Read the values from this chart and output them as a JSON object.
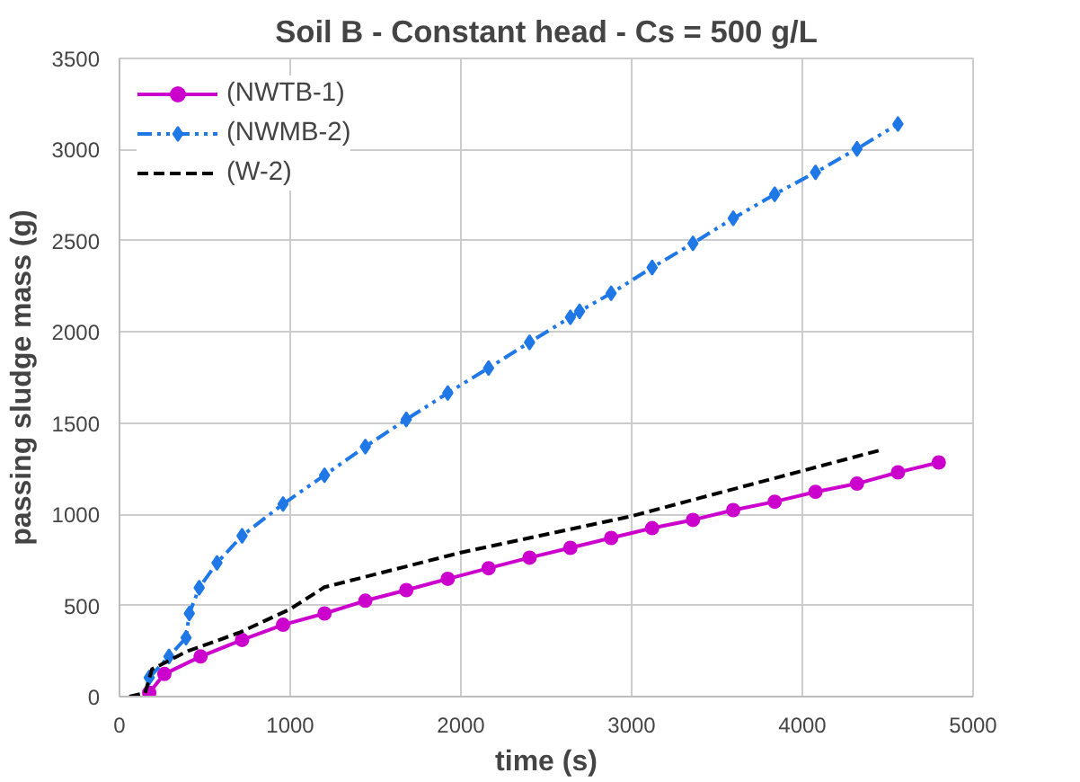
{
  "chart_data": {
    "type": "line",
    "title": "Soil B - Constant head - Cs = 500 g/L",
    "xlabel": "time (s)",
    "ylabel": "passing sludge mass (g)",
    "xlim": [
      0,
      5000
    ],
    "xticks": [
      0,
      1000,
      2000,
      3000,
      4000,
      5000
    ],
    "ylim": [
      0,
      3500
    ],
    "yticks": [
      0,
      500,
      1000,
      1500,
      2000,
      2500,
      3000,
      3500
    ],
    "grid": true,
    "legend": "top left",
    "series": [
      {
        "name": "(NWTB-1)",
        "color": "#cc00cc",
        "marker": "circle",
        "line_style": "solid",
        "x": [
          174,
          263,
          475,
          718,
          958,
          1201,
          1440,
          1680,
          1923,
          2162,
          2402,
          2641,
          2880,
          3120,
          3359,
          3595,
          3838,
          4077,
          4320,
          4560,
          4799
        ],
        "values": [
          21,
          124,
          220,
          311,
          394,
          456,
          526,
          584,
          646,
          704,
          762,
          816,
          870,
          924,
          969,
          1023,
          1069,
          1123,
          1168,
          1230,
          1284
        ]
      },
      {
        "name": "(NWMB-2)",
        "color": "#1f78e6",
        "marker": "diamond",
        "line_style": "dashdot",
        "x": [
          174,
          290,
          390,
          409,
          467,
          571,
          718,
          958,
          1201,
          1440,
          1680,
          1923,
          2162,
          2402,
          2641,
          2695,
          2880,
          3120,
          3359,
          3595,
          3838,
          4077,
          4320,
          4560
        ],
        "values": [
          104,
          220,
          323,
          456,
          597,
          733,
          882,
          1056,
          1214,
          1371,
          1520,
          1665,
          1802,
          1943,
          2080,
          2113,
          2212,
          2353,
          2486,
          2623,
          2755,
          2875,
          3004,
          3140
        ]
      },
      {
        "name": "(W-2)",
        "color": "#000000",
        "marker": "none",
        "line_style": "dashed",
        "x": [
          58,
          150,
          190,
          400,
          700,
          1000,
          1200,
          2000,
          3000,
          4450
        ],
        "values": [
          0,
          20,
          150,
          250,
          350,
          480,
          600,
          790,
          990,
          1350
        ]
      }
    ]
  }
}
